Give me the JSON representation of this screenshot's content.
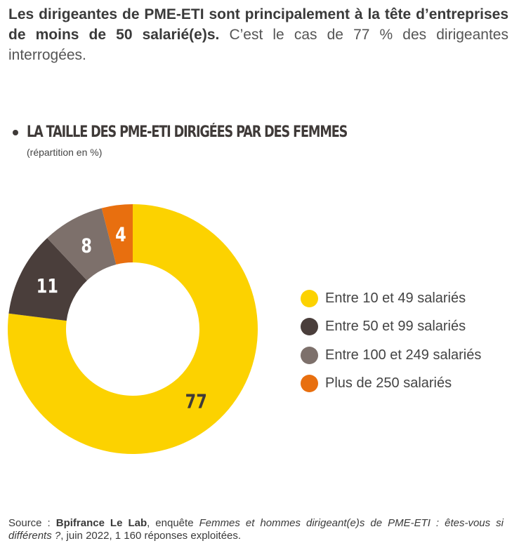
{
  "intro": {
    "bold": "Les dirigeantes de PME-ETI sont principalement à la tête d’entreprises de moins de 50 salarié(e)s.",
    "regular": "C’est le cas de 77 % des dirigeantes interrogées."
  },
  "colors": {
    "yellow": "#FCD200",
    "dark_brown": "#4A3E3B",
    "gray_brown": "#7D706B",
    "orange": "#E86F0F"
  },
  "source": {
    "prefix": "Source : ",
    "org": "Bpifrance Le Lab",
    "mid": ", enquête ",
    "study": "Femmes et hommes dirigeant(e)s de PME-ETI : êtes-vous si différents ?",
    "suffix": ", juin 2022, 1 160 réponses exploitées."
  },
  "chart_data": {
    "type": "pie",
    "title": "LA TAILLE DES PME-ETI DIRIGÉES PAR DES FEMMES",
    "subtitle": "(répartition en %)",
    "categories": [
      "Entre 10 et 49 salariés",
      "Entre 50 et 99 salariés",
      "Entre 100 et 249 salariés",
      "Plus de 250 salariés"
    ],
    "values": [
      77,
      11,
      8,
      4
    ],
    "colors": [
      "#FCD200",
      "#4A3E3B",
      "#7D706B",
      "#E86F0F"
    ],
    "label_colors": [
      "#3F3A38",
      "#FFFFFF",
      "#FFFFFF",
      "#FFFFFF"
    ],
    "donut": true,
    "legend_position": "right"
  }
}
